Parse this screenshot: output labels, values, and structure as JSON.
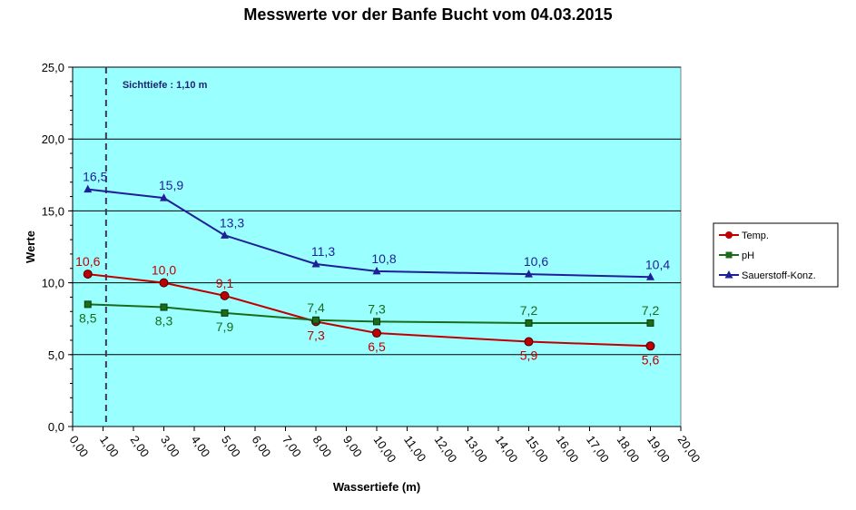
{
  "chart_data": {
    "type": "line",
    "title": "Messwerte vor der Banfe Bucht vom 04.03.2015",
    "xlabel": "Wassertiefe (m)",
    "ylabel": "Werte",
    "xlim": [
      0,
      20
    ],
    "ylim": [
      0,
      25
    ],
    "x_ticks": [
      "0,00",
      "1,00",
      "2,00",
      "3,00",
      "4,00",
      "5,00",
      "6,00",
      "7,00",
      "8,00",
      "9,00",
      "10,00",
      "11,00",
      "12,00",
      "13,00",
      "14,00",
      "15,00",
      "16,00",
      "17,00",
      "18,00",
      "19,00",
      "20,00"
    ],
    "y_ticks": [
      "0,0",
      "5,0",
      "10,0",
      "15,0",
      "20,0",
      "25,0"
    ],
    "grid": "horizontal",
    "legend_position": "right",
    "plot_background": "#99ffff",
    "annotation": {
      "text": "Sichttiefe : 1,10 m",
      "x": 1.1
    },
    "series": [
      {
        "name": "Temp.",
        "color": "#c00000",
        "marker": "circle",
        "label_position": "above",
        "x": [
          0.5,
          3,
          5,
          8,
          10,
          15,
          19
        ],
        "values": [
          10.6,
          10.0,
          9.1,
          7.3,
          6.5,
          5.9,
          5.6
        ],
        "labels": [
          "10,6",
          "10,0",
          "9,1",
          "7,3",
          "6,5",
          "5,9",
          "5,6"
        ],
        "label_positions": [
          "above",
          "above",
          "above",
          "below",
          "below",
          "below",
          "below"
        ]
      },
      {
        "name": "pH",
        "color": "#1a6b1a",
        "marker": "square",
        "x": [
          0.5,
          3,
          5,
          8,
          10,
          15,
          19
        ],
        "values": [
          8.5,
          8.3,
          7.9,
          7.4,
          7.3,
          7.2,
          7.2
        ],
        "labels": [
          "8,5",
          "8,3",
          "7,9",
          "7,4",
          "7,3",
          "7,2",
          "7,2"
        ],
        "label_positions": [
          "below",
          "below",
          "below",
          "above",
          "above",
          "above",
          "above"
        ]
      },
      {
        "name": "Sauerstoff-Konz.",
        "color": "#1f1f99",
        "marker": "triangle",
        "x": [
          0.5,
          3,
          5,
          8,
          10,
          15,
          19
        ],
        "values": [
          16.5,
          15.9,
          13.3,
          11.3,
          10.8,
          10.6,
          10.4
        ],
        "labels": [
          "16,5",
          "15,9",
          "13,3",
          "11,3",
          "10,8",
          "10,6",
          "10,4"
        ],
        "label_positions": [
          "above",
          "above",
          "above",
          "above",
          "above",
          "above",
          "above"
        ]
      }
    ]
  }
}
